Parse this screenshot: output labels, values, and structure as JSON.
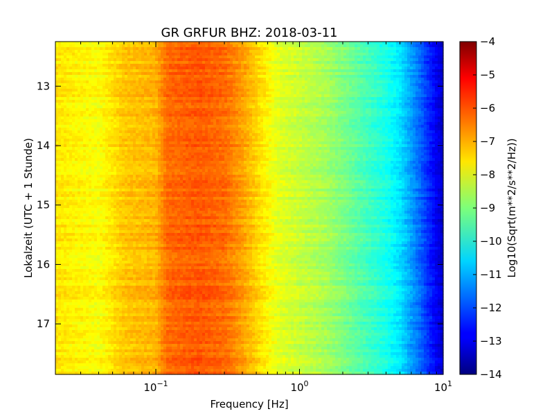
{
  "chart_data": {
    "type": "heatmap",
    "title": "GR GRFUR BHZ: 2018-03-11",
    "xlabel": "Frequency [Hz]",
    "ylabel": "Lokalzeit (UTC + 1 Stunde)",
    "x_scale": "log",
    "xlim": [
      0.02,
      10
    ],
    "ylim": [
      17.85,
      12.25
    ],
    "x_ticks": [
      {
        "value": 0.1,
        "base": "10",
        "exp": "−1"
      },
      {
        "value": 1,
        "base": "10",
        "exp": "0"
      },
      {
        "value": 10,
        "base": "10",
        "exp": "1"
      }
    ],
    "y_ticks": [
      13,
      14,
      15,
      16,
      17
    ],
    "colorbar": {
      "label": "Log10(Sqrt(m**2/s**2/Hz))",
      "range": [
        -14,
        -4
      ],
      "ticks": [
        "−4",
        "−5",
        "−6",
        "−7",
        "−8",
        "−9",
        "−10",
        "−11",
        "−12",
        "−13",
        "−14"
      ],
      "colormap": "jet"
    },
    "spectrum_profile": {
      "frequency_hz": [
        0.02,
        0.04,
        0.06,
        0.1,
        0.12,
        0.15,
        0.2,
        0.3,
        0.4,
        0.55,
        0.7,
        1.0,
        1.5,
        2.0,
        3.0,
        4.0,
        5.0,
        6.0,
        7.0,
        8.0,
        10.0
      ],
      "log10_amplitude": [
        -7.5,
        -7.8,
        -7.2,
        -7.0,
        -6.3,
        -6.2,
        -6.1,
        -6.3,
        -6.8,
        -7.5,
        -8.0,
        -8.3,
        -8.6,
        -9.0,
        -9.6,
        -10.0,
        -10.5,
        -11.2,
        -11.8,
        -12.4,
        -13.3
      ]
    }
  }
}
